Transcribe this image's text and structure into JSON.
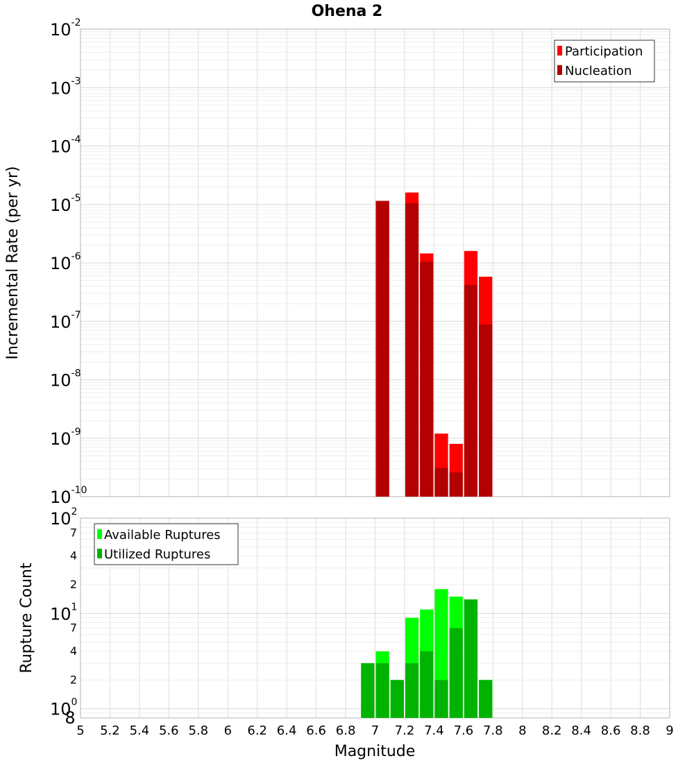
{
  "chart_data": [
    {
      "type": "bar",
      "title": "Ohena 2",
      "xlabel": "",
      "ylabel": "Incremental Rate (per yr)",
      "yscale": "log",
      "ylim": [
        1e-10,
        0.01
      ],
      "xlim": [
        5,
        9
      ],
      "grid": true,
      "legend_position": "top-right",
      "y_major_ticks": [
        {
          "base": "10",
          "exp": "-10"
        },
        {
          "base": "10",
          "exp": "-9"
        },
        {
          "base": "10",
          "exp": "-8"
        },
        {
          "base": "10",
          "exp": "-7"
        },
        {
          "base": "10",
          "exp": "-6"
        },
        {
          "base": "10",
          "exp": "-5"
        },
        {
          "base": "10",
          "exp": "-4"
        },
        {
          "base": "10",
          "exp": "-3"
        },
        {
          "base": "10",
          "exp": "-2"
        }
      ],
      "x": [
        7.05,
        7.25,
        7.35,
        7.45,
        7.55,
        7.65,
        7.75
      ],
      "series": [
        {
          "name": "Participation",
          "color": "#ff0000",
          "values": [
            1.15e-05,
            1.6e-05,
            1.45e-06,
            1.2e-09,
            8e-10,
            1.6e-06,
            5.8e-07
          ]
        },
        {
          "name": "Nucleation",
          "color": "#b30000",
          "values": [
            1.15e-05,
            1.05e-05,
            1.05e-06,
            3.1e-10,
            2.6e-10,
            4.2e-07,
            8.8e-08
          ]
        }
      ]
    },
    {
      "type": "bar",
      "title": "",
      "xlabel": "Magnitude",
      "ylabel": "Rupture Count",
      "yscale": "log",
      "ylim": [
        0.8,
        100
      ],
      "xlim": [
        5,
        9
      ],
      "grid": true,
      "legend_position": "top-left",
      "y_major_ticks": [
        {
          "base": "10",
          "exp": "0"
        },
        {
          "base": "10",
          "exp": "1"
        },
        {
          "base": "10",
          "exp": "2"
        }
      ],
      "y_minor_ticks": [
        "8",
        "2",
        "4",
        "7",
        "2",
        "4",
        "7"
      ],
      "y_minor_values": [
        0.8,
        2,
        4,
        7,
        20,
        40,
        70
      ],
      "x_ticks": [
        "5",
        "5.2",
        "5.4",
        "5.6",
        "5.8",
        "6",
        "6.2",
        "6.4",
        "6.6",
        "6.8",
        "7",
        "7.2",
        "7.4",
        "7.6",
        "7.8",
        "8",
        "8.2",
        "8.4",
        "8.6",
        "8.8",
        "9"
      ],
      "x": [
        6.95,
        7.05,
        7.15,
        7.25,
        7.35,
        7.45,
        7.55,
        7.65,
        7.75
      ],
      "series": [
        {
          "name": "Available Ruptures",
          "color": "#00ff00",
          "values": [
            3,
            4,
            2,
            9,
            11,
            18,
            15,
            14,
            2
          ]
        },
        {
          "name": "Utilized Ruptures",
          "color": "#00b300",
          "values": [
            3,
            3,
            2,
            3,
            4,
            2,
            7,
            14,
            2
          ]
        }
      ]
    }
  ]
}
